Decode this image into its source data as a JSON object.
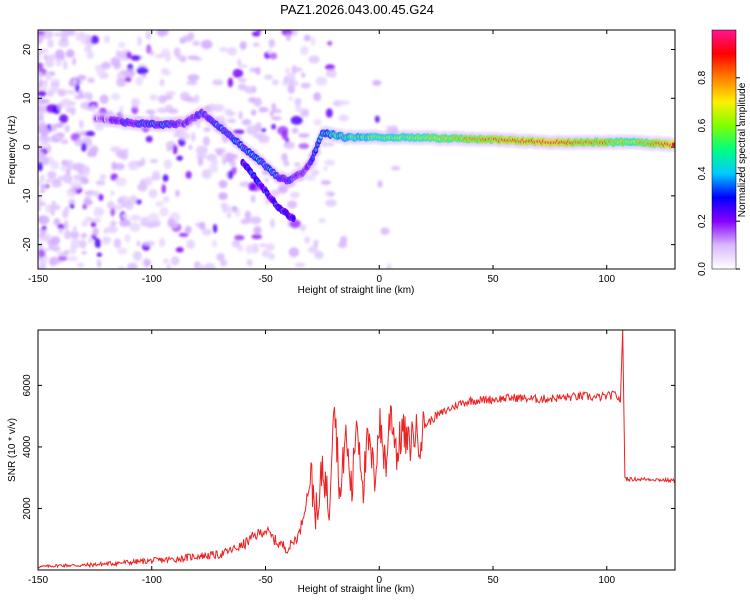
{
  "figure_title": "PAZ1.2026.043.00.45.G24",
  "chart_data": [
    {
      "type": "heatmap",
      "title": "PAZ1.2026.043.00.45.G24",
      "xlabel": "Height of straight line (km)",
      "ylabel": "Frequency (Hz)",
      "xlim": [
        -150,
        130
      ],
      "ylim": [
        -25,
        24
      ],
      "xticks": [
        -150,
        -100,
        -50,
        0,
        50,
        100
      ],
      "yticks": [
        -20,
        -10,
        0,
        10,
        20
      ],
      "xtick_labels": [
        "-150",
        "-100",
        "-50",
        "0",
        "50",
        "100"
      ],
      "ytick_labels": [
        "-20",
        "-10",
        "0",
        "10",
        "20"
      ],
      "colorbar": {
        "label": "Normalized spectral amplitude",
        "range": [
          0,
          1
        ],
        "ticks": [
          0.0,
          0.2,
          0.4,
          0.6,
          0.8
        ],
        "tick_labels": [
          "0.0",
          "0.2",
          "0.4",
          "0.6",
          "0.8"
        ],
        "colormap": [
          "#ffffff",
          "#d8b8ff",
          "#8800ff",
          "#0000ff",
          "#00ccff",
          "#00ff80",
          "#80ff00",
          "#ffee00",
          "#ff8000",
          "#ff0000",
          "#ff1493"
        ]
      },
      "ridge": {
        "description_x": [
          -125,
          -110,
          -95,
          -85,
          -78,
          -70,
          -60,
          -52,
          -45,
          -40,
          -37,
          -33,
          -30,
          -25,
          -15,
          0,
          15,
          50,
          75,
          100,
          110,
          130
        ],
        "frequency_y": [
          6,
          5,
          4.5,
          5,
          7,
          4,
          0,
          -3,
          -6,
          -7,
          -6,
          -5,
          -3,
          3,
          2,
          2,
          2,
          1.5,
          1,
          1,
          1,
          0.5
        ],
        "amplitude": [
          0.15,
          0.3,
          0.35,
          0.25,
          0.3,
          0.35,
          0.4,
          0.4,
          0.35,
          0.3,
          0.3,
          0.25,
          0.3,
          0.45,
          0.55,
          0.6,
          0.65,
          0.85,
          0.95,
          0.8,
          0.7,
          0.95
        ]
      },
      "secondary_branch": {
        "x": [
          -60,
          -55,
          -50,
          -45,
          -40,
          -37
        ],
        "frequency_y": [
          -3,
          -6,
          -9,
          -12,
          -14,
          -15
        ]
      }
    },
    {
      "type": "line",
      "xlabel": "Height of straight line (km)",
      "ylabel": "SNR (10 * v/v)",
      "xlim": [
        -150,
        130
      ],
      "ylim": [
        0,
        7800
      ],
      "xticks": [
        -150,
        -100,
        -50,
        0,
        50,
        100
      ],
      "yticks": [
        2000,
        4000,
        6000
      ],
      "xtick_labels": [
        "-150",
        "-100",
        "-50",
        "0",
        "50",
        "100"
      ],
      "ytick_labels": [
        "2000",
        "4000",
        "6000"
      ],
      "series": [
        {
          "name": "SNR",
          "color": "#ee2222",
          "x": [
            -150,
            -140,
            -130,
            -120,
            -110,
            -100,
            -90,
            -80,
            -70,
            -60,
            -55,
            -50,
            -45,
            -40,
            -35,
            -30,
            -27,
            -25,
            -22,
            -20,
            -17,
            -15,
            -12,
            -10,
            -7,
            -5,
            -2,
            0,
            3,
            5,
            8,
            10,
            13,
            15,
            18,
            20,
            25,
            30,
            35,
            40,
            50,
            60,
            70,
            80,
            90,
            95,
            100,
            104,
            106,
            107,
            108,
            110,
            120,
            130
          ],
          "values": [
            100,
            150,
            150,
            200,
            250,
            300,
            350,
            450,
            500,
            800,
            1100,
            1300,
            900,
            700,
            1200,
            3000,
            1500,
            3500,
            2000,
            5800,
            2200,
            4500,
            2500,
            5000,
            2800,
            4200,
            3000,
            4800,
            3400,
            5300,
            3700,
            4600,
            4000,
            4500,
            4300,
            4700,
            5000,
            5200,
            5400,
            5500,
            5550,
            5600,
            5550,
            5600,
            5650,
            5600,
            5650,
            5700,
            5500,
            7800,
            3000,
            2950,
            2950,
            2900
          ]
        }
      ]
    }
  ]
}
